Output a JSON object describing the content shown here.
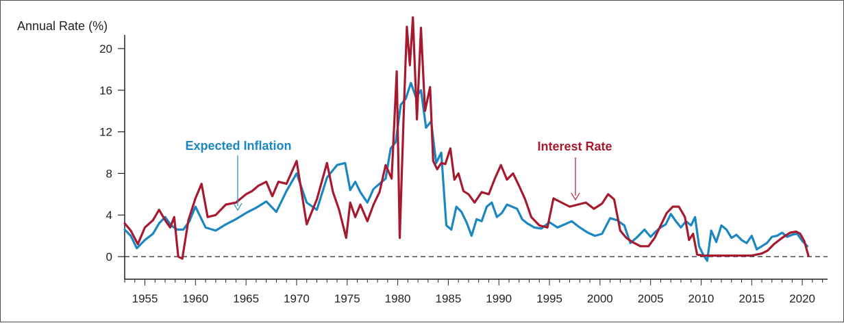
{
  "chart_data": {
    "type": "line",
    "title": "",
    "xlabel": "",
    "ylabel": "Annual Rate (%)",
    "xlim": [
      1953,
      2022.5
    ],
    "ylim": [
      -2.2,
      20
    ],
    "y_ticks": [
      0,
      4,
      8,
      12,
      16,
      20
    ],
    "x_ticks": [
      1955,
      1960,
      1965,
      1970,
      1975,
      1980,
      1985,
      1990,
      1995,
      2000,
      2005,
      2010,
      2015,
      2020
    ],
    "zero_line": "dashed",
    "grid": false,
    "series": [
      {
        "name": "Expected Inflation",
        "color": "#1a86c2",
        "x": [
          1953,
          1953.6,
          1954.2,
          1955,
          1955.8,
          1956.4,
          1957,
          1957.6,
          1958.2,
          1958.8,
          1959.4,
          1960,
          1961,
          1962,
          1963,
          1964,
          1965,
          1966,
          1967,
          1968,
          1969,
          1970,
          1971,
          1972,
          1973,
          1974,
          1974.8,
          1975.3,
          1975.8,
          1976.3,
          1977,
          1977.6,
          1978.2,
          1978.8,
          1979.3,
          1979.8,
          1980.3,
          1980.8,
          1981.3,
          1981.8,
          1982.3,
          1982.8,
          1983.3,
          1983.8,
          1984.3,
          1984.8,
          1985.3,
          1985.8,
          1986.3,
          1986.8,
          1987.3,
          1987.8,
          1988.3,
          1988.8,
          1989.3,
          1989.8,
          1990.3,
          1990.8,
          1991.3,
          1991.8,
          1992.3,
          1992.8,
          1993.5,
          1994.2,
          1995,
          1995.8,
          1996.5,
          1997.2,
          1998,
          1998.8,
          1999.5,
          2000.2,
          2001,
          2001.7,
          2002.4,
          2003,
          2003.7,
          2004.4,
          2005,
          2005.5,
          2006,
          2006.5,
          2007,
          2007.5,
          2008,
          2008.5,
          2009,
          2009.4,
          2009.8,
          2010.2,
          2010.6,
          2011,
          2011.5,
          2012,
          2012.5,
          2013,
          2013.5,
          2014,
          2014.5,
          2015,
          2015.5,
          2016,
          2016.5,
          2017,
          2017.5,
          2018,
          2018.5,
          2019,
          2019.5,
          2020,
          2020.5
        ],
        "values": [
          2.6,
          2,
          0.8,
          1.6,
          2.2,
          3.2,
          3.8,
          3,
          2.6,
          2.6,
          3.4,
          4.8,
          2.8,
          2.5,
          3.1,
          3.6,
          4.2,
          4.7,
          5.3,
          4.3,
          6.3,
          8,
          5.2,
          4.5,
          7.6,
          8.8,
          9,
          6.4,
          7.2,
          6.2,
          5.2,
          6.5,
          7,
          7.5,
          10.4,
          11,
          14.6,
          15.2,
          16.7,
          15.3,
          16,
          12.4,
          13,
          9,
          10,
          3,
          2.6,
          4.8,
          4.3,
          3.3,
          2,
          3.6,
          3.4,
          4.8,
          5.2,
          3.8,
          4.2,
          5,
          4.8,
          4.6,
          3.6,
          3.2,
          2.8,
          2.7,
          3.3,
          2.8,
          3.1,
          3.4,
          2.8,
          2.3,
          2,
          2.2,
          3.7,
          3.5,
          3,
          1.3,
          1.9,
          2.6,
          1.9,
          2.4,
          2.8,
          3.1,
          4.1,
          3.4,
          2.8,
          3.4,
          3,
          3.8,
          1,
          0.2,
          -0.4,
          2.5,
          1.4,
          3,
          2.6,
          1.8,
          2.1,
          1.6,
          1.3,
          2,
          0.7,
          1,
          1.3,
          1.9,
          2,
          2.3,
          1.9,
          2.1,
          2.2,
          1.5,
          1
        ]
      },
      {
        "name": "Interest Rate",
        "color": "#a6192e",
        "x": [
          1953,
          1953.6,
          1954.3,
          1955,
          1955.8,
          1956.4,
          1957,
          1957.5,
          1957.9,
          1958.3,
          1958.7,
          1959.3,
          1960,
          1960.6,
          1961.2,
          1962,
          1963,
          1964,
          1965,
          1965.6,
          1966.2,
          1967,
          1967.6,
          1968.2,
          1969,
          1970,
          1971,
          1972,
          1973,
          1973.6,
          1974.2,
          1974.9,
          1975.3,
          1975.8,
          1976.3,
          1977,
          1977.6,
          1978.2,
          1978.8,
          1979.4,
          1979.9,
          1980.2,
          1980.6,
          1980.9,
          1981.2,
          1981.5,
          1981.9,
          1982.3,
          1982.7,
          1983.2,
          1983.5,
          1983.9,
          1984.3,
          1984.7,
          1985.2,
          1985.6,
          1986,
          1986.5,
          1987,
          1987.6,
          1988.3,
          1989,
          1989.6,
          1990.2,
          1990.8,
          1991.4,
          1992,
          1992.6,
          1993.2,
          1994,
          1994.8,
          1995.4,
          1996.2,
          1997,
          1997.8,
          1998.6,
          1999.4,
          2000.2,
          2000.8,
          2001.4,
          2002,
          2002.6,
          2003.2,
          2004,
          2004.8,
          2005.4,
          2006,
          2006.6,
          2007.2,
          2007.8,
          2008.4,
          2008.8,
          2009.2,
          2009.6,
          2010.2,
          2011,
          2012,
          2013,
          2014,
          2015,
          2016,
          2016.6,
          2017.2,
          2018,
          2018.8,
          2019.4,
          2019.8,
          2020.2,
          2020.6
        ],
        "values": [
          3.2,
          2.5,
          1.2,
          2.8,
          3.5,
          4.5,
          3.5,
          2.8,
          3.8,
          0,
          -0.2,
          3.5,
          5.6,
          7,
          3.8,
          4,
          5,
          5.2,
          6,
          6.3,
          6.8,
          7.2,
          5.8,
          7.2,
          7,
          9.2,
          3.1,
          5.5,
          9,
          6.2,
          4.5,
          1.8,
          5.2,
          3.8,
          5,
          3.4,
          5,
          6.2,
          8.8,
          7.5,
          17.8,
          1.8,
          13.9,
          22.1,
          18.4,
          23,
          13.2,
          22,
          14,
          16.3,
          9.2,
          8.4,
          9,
          8.9,
          10.4,
          7.4,
          8,
          6.3,
          6,
          5.2,
          6.2,
          6,
          7.5,
          8.8,
          7.4,
          8,
          6.8,
          5.5,
          3.8,
          3,
          2.8,
          5.6,
          5.2,
          4.8,
          5,
          5.2,
          4.6,
          5.1,
          6,
          5.5,
          2.5,
          1.8,
          1.4,
          1,
          1,
          1.8,
          3,
          4.2,
          4.8,
          4.8,
          3.8,
          1.6,
          2.2,
          0.2,
          0.1,
          0.1,
          0.1,
          0.1,
          0.1,
          0.1,
          0.3,
          0.6,
          1.2,
          1.8,
          2.3,
          2.4,
          2.2,
          1.5,
          0.1
        ]
      }
    ],
    "annotations": [
      {
        "text": "Expected Inflation",
        "color": "#1a86c2"
      },
      {
        "text": "Interest Rate",
        "color": "#a6192e"
      }
    ]
  }
}
